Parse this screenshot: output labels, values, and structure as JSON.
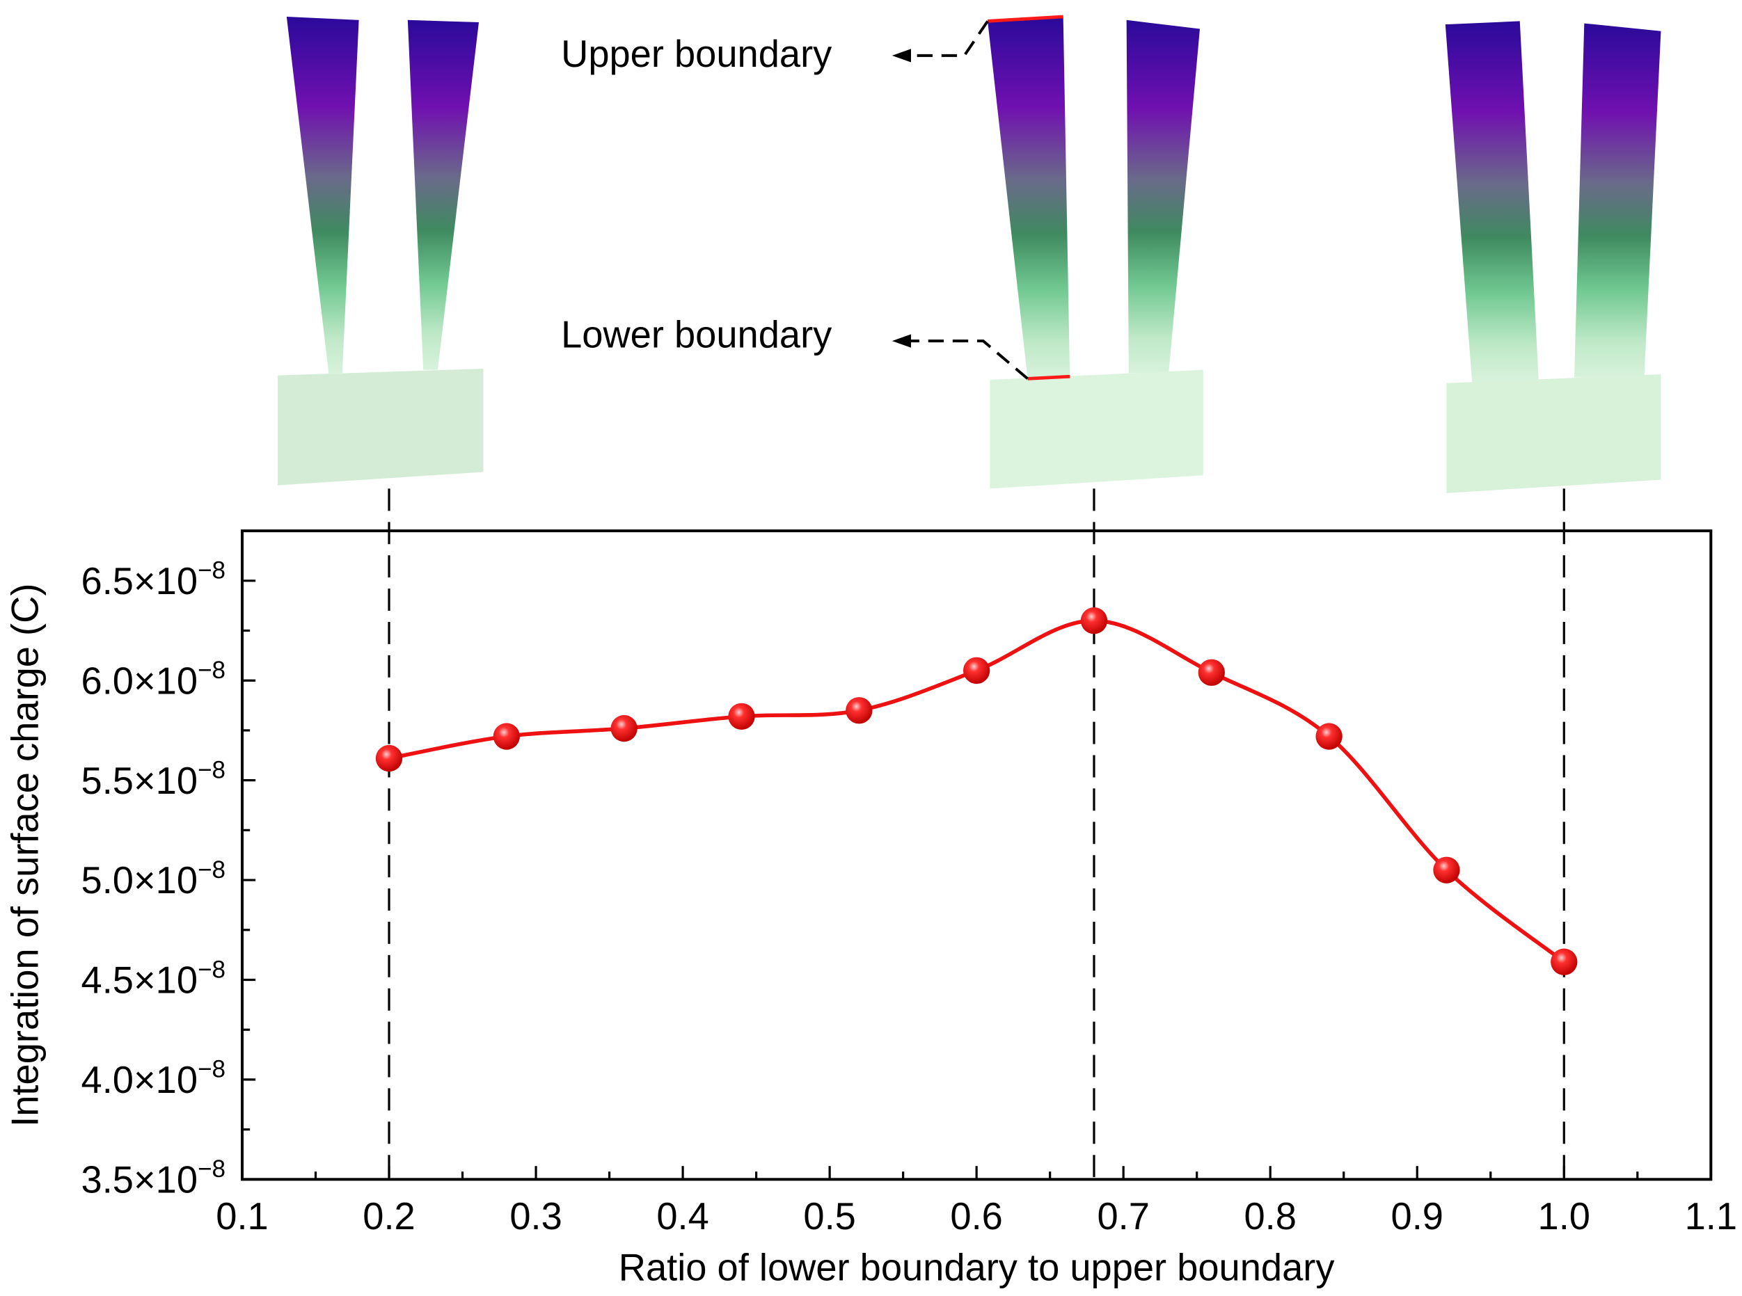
{
  "chart_data": {
    "type": "line",
    "xlabel": "Ratio of lower boundary to upper boundary",
    "ylabel": "Integration of surface charge (C)",
    "xlim": [
      0.1,
      1.1
    ],
    "ylim": [
      3.5e-08,
      6.75e-08
    ],
    "x_ticks": [
      "0.1",
      "0.2",
      "0.3",
      "0.4",
      "0.5",
      "0.6",
      "0.7",
      "0.8",
      "0.9",
      "1.0",
      "1.1"
    ],
    "y_ticks": [
      {
        "value": 3.5e-08,
        "mantissa": "3.5",
        "exp": "−8"
      },
      {
        "value": 4e-08,
        "mantissa": "4.0",
        "exp": "−8"
      },
      {
        "value": 4.5e-08,
        "mantissa": "4.5",
        "exp": "−8"
      },
      {
        "value": 5e-08,
        "mantissa": "5.0",
        "exp": "−8"
      },
      {
        "value": 5.5e-08,
        "mantissa": "5.5",
        "exp": "−8"
      },
      {
        "value": 6e-08,
        "mantissa": "6.0",
        "exp": "−8"
      },
      {
        "value": 6.5e-08,
        "mantissa": "6.5",
        "exp": "−8"
      }
    ],
    "times_sign": "×10",
    "series": [
      {
        "color": "#ee1111",
        "x": [
          0.2,
          0.28,
          0.36,
          0.44,
          0.52,
          0.6,
          0.68,
          0.76,
          0.84,
          0.92,
          1.0
        ],
        "y": [
          5.61e-08,
          5.72e-08,
          5.76e-08,
          5.82e-08,
          5.85e-08,
          6.05e-08,
          6.3e-08,
          6.04e-08,
          5.72e-08,
          5.05e-08,
          4.59e-08
        ]
      }
    ],
    "reference_lines_x": [
      0.2,
      0.68,
      1.0
    ],
    "grid": false
  },
  "annotations": {
    "upper": "Upper boundary",
    "lower": "Lower boundary"
  },
  "colors": {
    "boundary_marker": "#ff1a1a",
    "gradient_top": "#2a0a9a",
    "gradient_mid": "#7a10b0",
    "gradient_green": "#4a8a68",
    "gradient_light": "#d8f2dc"
  }
}
